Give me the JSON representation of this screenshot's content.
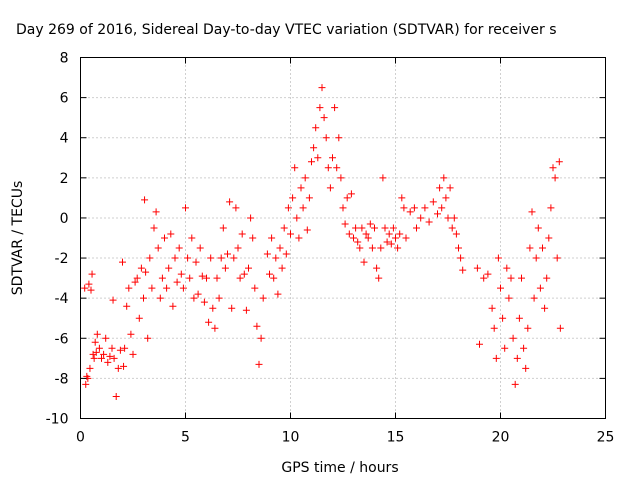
{
  "chart_data": {
    "type": "scatter",
    "title": "Day 269 of 2016, Sidereal Day-to-day VTEC variation (SDTVAR) for receiver s",
    "xlabel": "GPS time / hours",
    "ylabel": "SDTVAR / TECUs",
    "xlim": [
      0,
      25
    ],
    "ylim": [
      -10,
      8
    ],
    "x_ticks": [
      0,
      5,
      10,
      15,
      20,
      25
    ],
    "y_ticks": [
      -10,
      -8,
      -6,
      -4,
      -2,
      0,
      2,
      4,
      6,
      8
    ],
    "x_tick_labels": [
      "0",
      "5",
      "10",
      "15",
      "20",
      "25"
    ],
    "y_tick_labels": [
      "-10",
      "-8",
      "-6",
      "-4",
      "-2",
      "0",
      "2",
      "4",
      "6",
      "8"
    ],
    "grid": true,
    "marker": "+",
    "series": [
      {
        "color": "#ff0000",
        "points": [
          [
            0.2,
            -3.5
          ],
          [
            0.25,
            -8.3
          ],
          [
            0.3,
            -7.9
          ],
          [
            0.35,
            -8.0
          ],
          [
            0.4,
            -3.3
          ],
          [
            0.45,
            -7.5
          ],
          [
            0.5,
            -3.6
          ],
          [
            0.55,
            -2.8
          ],
          [
            0.6,
            -6.8
          ],
          [
            0.65,
            -7.0
          ],
          [
            0.7,
            -6.2
          ],
          [
            0.75,
            -6.7
          ],
          [
            0.8,
            -5.8
          ],
          [
            0.9,
            -6.5
          ],
          [
            1.0,
            -7.0
          ],
          [
            1.1,
            -6.8
          ],
          [
            1.2,
            -6.0
          ],
          [
            1.3,
            -7.2
          ],
          [
            1.4,
            -6.9
          ],
          [
            1.5,
            -6.5
          ],
          [
            1.55,
            -4.1
          ],
          [
            1.6,
            -7.0
          ],
          [
            1.7,
            -8.9
          ],
          [
            1.8,
            -7.5
          ],
          [
            1.9,
            -6.6
          ],
          [
            2.0,
            -2.2
          ],
          [
            2.05,
            -7.4
          ],
          [
            2.1,
            -6.5
          ],
          [
            2.2,
            -4.4
          ],
          [
            2.3,
            -3.5
          ],
          [
            2.4,
            -5.8
          ],
          [
            2.5,
            -6.8
          ],
          [
            2.6,
            -3.2
          ],
          [
            2.7,
            -3.0
          ],
          [
            2.8,
            -5.0
          ],
          [
            2.9,
            -2.5
          ],
          [
            3.0,
            -4.0
          ],
          [
            3.05,
            0.9
          ],
          [
            3.1,
            -2.7
          ],
          [
            3.2,
            -6.0
          ],
          [
            3.3,
            -2.0
          ],
          [
            3.4,
            -3.5
          ],
          [
            3.5,
            -0.5
          ],
          [
            3.6,
            0.3
          ],
          [
            3.7,
            -1.5
          ],
          [
            3.8,
            -4.0
          ],
          [
            3.9,
            -3.0
          ],
          [
            4.0,
            -1.0
          ],
          [
            4.1,
            -3.5
          ],
          [
            4.2,
            -2.5
          ],
          [
            4.3,
            -0.8
          ],
          [
            4.4,
            -4.4
          ],
          [
            4.5,
            -2.0
          ],
          [
            4.6,
            -3.2
          ],
          [
            4.7,
            -1.5
          ],
          [
            4.8,
            -2.8
          ],
          [
            4.9,
            -3.5
          ],
          [
            5.0,
            0.5
          ],
          [
            5.1,
            -2.0
          ],
          [
            5.2,
            -3.0
          ],
          [
            5.3,
            -1.0
          ],
          [
            5.4,
            -4.0
          ],
          [
            5.5,
            -2.2
          ],
          [
            5.6,
            -3.8
          ],
          [
            5.7,
            -1.5
          ],
          [
            5.8,
            -2.9
          ],
          [
            5.9,
            -4.2
          ],
          [
            6.0,
            -3.0
          ],
          [
            6.1,
            -5.2
          ],
          [
            6.2,
            -2.0
          ],
          [
            6.3,
            -4.5
          ],
          [
            6.4,
            -5.5
          ],
          [
            6.5,
            -3.0
          ],
          [
            6.6,
            -4.0
          ],
          [
            6.7,
            -2.0
          ],
          [
            6.8,
            -0.5
          ],
          [
            6.9,
            -2.5
          ],
          [
            7.0,
            -1.8
          ],
          [
            7.1,
            0.8
          ],
          [
            7.2,
            -4.5
          ],
          [
            7.3,
            -2.0
          ],
          [
            7.4,
            0.5
          ],
          [
            7.5,
            -1.5
          ],
          [
            7.6,
            -3.0
          ],
          [
            7.7,
            -0.8
          ],
          [
            7.8,
            -2.8
          ],
          [
            7.9,
            -4.6
          ],
          [
            8.0,
            -2.5
          ],
          [
            8.1,
            0.0
          ],
          [
            8.2,
            -1.0
          ],
          [
            8.3,
            -3.5
          ],
          [
            8.4,
            -5.4
          ],
          [
            8.5,
            -7.3
          ],
          [
            8.6,
            -6.0
          ],
          [
            8.7,
            -4.0
          ],
          [
            8.9,
            -1.8
          ],
          [
            9.0,
            -2.8
          ],
          [
            9.1,
            -1.0
          ],
          [
            9.2,
            -3.0
          ],
          [
            9.3,
            -2.0
          ],
          [
            9.4,
            -3.8
          ],
          [
            9.5,
            -1.5
          ],
          [
            9.6,
            -2.5
          ],
          [
            9.7,
            -0.5
          ],
          [
            9.8,
            -1.8
          ],
          [
            9.9,
            0.5
          ],
          [
            10.0,
            -0.8
          ],
          [
            10.1,
            1.0
          ],
          [
            10.2,
            2.5
          ],
          [
            10.3,
            0.0
          ],
          [
            10.4,
            -1.0
          ],
          [
            10.5,
            1.5
          ],
          [
            10.6,
            0.5
          ],
          [
            10.7,
            2.0
          ],
          [
            10.8,
            -0.6
          ],
          [
            10.9,
            1.0
          ],
          [
            11.0,
            2.8
          ],
          [
            11.1,
            3.5
          ],
          [
            11.2,
            4.5
          ],
          [
            11.3,
            3.0
          ],
          [
            11.4,
            5.5
          ],
          [
            11.5,
            6.5
          ],
          [
            11.6,
            5.0
          ],
          [
            11.7,
            4.0
          ],
          [
            11.8,
            2.5
          ],
          [
            11.9,
            1.5
          ],
          [
            12.0,
            3.0
          ],
          [
            12.1,
            5.5
          ],
          [
            12.2,
            2.5
          ],
          [
            12.3,
            4.0
          ],
          [
            12.4,
            2.0
          ],
          [
            12.5,
            0.5
          ],
          [
            12.6,
            -0.3
          ],
          [
            12.7,
            1.0
          ],
          [
            12.8,
            -0.8
          ],
          [
            12.9,
            1.2
          ],
          [
            13.0,
            -1.0
          ],
          [
            13.1,
            -0.5
          ],
          [
            13.2,
            -1.2
          ],
          [
            13.3,
            -1.5
          ],
          [
            13.4,
            -0.5
          ],
          [
            13.5,
            -2.2
          ],
          [
            13.6,
            -0.8
          ],
          [
            13.7,
            -1.0
          ],
          [
            13.8,
            -0.3
          ],
          [
            13.9,
            -1.5
          ],
          [
            14.0,
            -0.5
          ],
          [
            14.1,
            -2.5
          ],
          [
            14.2,
            -3.0
          ],
          [
            14.3,
            -1.5
          ],
          [
            14.4,
            2.0
          ],
          [
            14.5,
            -0.5
          ],
          [
            14.6,
            -1.2
          ],
          [
            14.7,
            -0.8
          ],
          [
            14.8,
            -1.3
          ],
          [
            14.9,
            -0.5
          ],
          [
            15.0,
            -1.0
          ],
          [
            15.1,
            -1.5
          ],
          [
            15.2,
            -0.8
          ],
          [
            15.3,
            1.0
          ],
          [
            15.4,
            0.5
          ],
          [
            15.5,
            -1.0
          ],
          [
            15.7,
            0.3
          ],
          [
            15.9,
            0.5
          ],
          [
            16.0,
            -0.5
          ],
          [
            16.2,
            0.0
          ],
          [
            16.4,
            0.5
          ],
          [
            16.6,
            -0.2
          ],
          [
            16.8,
            0.8
          ],
          [
            17.0,
            0.2
          ],
          [
            17.1,
            1.5
          ],
          [
            17.2,
            0.5
          ],
          [
            17.3,
            2.0
          ],
          [
            17.4,
            1.0
          ],
          [
            17.5,
            0.0
          ],
          [
            17.6,
            1.5
          ],
          [
            17.7,
            -0.5
          ],
          [
            17.8,
            0.0
          ],
          [
            17.9,
            -0.8
          ],
          [
            18.0,
            -1.5
          ],
          [
            18.1,
            -2.0
          ],
          [
            18.2,
            -2.6
          ],
          [
            18.9,
            -2.5
          ],
          [
            19.0,
            -6.3
          ],
          [
            19.2,
            -3.0
          ],
          [
            19.4,
            -2.8
          ],
          [
            19.6,
            -4.5
          ],
          [
            19.7,
            -5.5
          ],
          [
            19.8,
            -7.0
          ],
          [
            19.9,
            -2.0
          ],
          [
            20.0,
            -3.5
          ],
          [
            20.1,
            -5.0
          ],
          [
            20.2,
            -6.5
          ],
          [
            20.3,
            -2.5
          ],
          [
            20.4,
            -4.0
          ],
          [
            20.5,
            -3.0
          ],
          [
            20.6,
            -6.0
          ],
          [
            20.7,
            -8.3
          ],
          [
            20.8,
            -7.0
          ],
          [
            20.9,
            -5.0
          ],
          [
            21.0,
            -3.0
          ],
          [
            21.1,
            -6.5
          ],
          [
            21.2,
            -7.5
          ],
          [
            21.3,
            -5.5
          ],
          [
            21.4,
            -1.5
          ],
          [
            21.5,
            0.3
          ],
          [
            21.6,
            -4.0
          ],
          [
            21.7,
            -2.0
          ],
          [
            21.8,
            -0.5
          ],
          [
            21.9,
            -3.5
          ],
          [
            22.0,
            -1.5
          ],
          [
            22.1,
            -4.5
          ],
          [
            22.2,
            -3.0
          ],
          [
            22.3,
            -1.0
          ],
          [
            22.4,
            0.5
          ],
          [
            22.5,
            2.5
          ],
          [
            22.6,
            2.0
          ],
          [
            22.7,
            -2.0
          ],
          [
            22.8,
            2.8
          ],
          [
            22.85,
            -5.5
          ]
        ]
      }
    ]
  }
}
